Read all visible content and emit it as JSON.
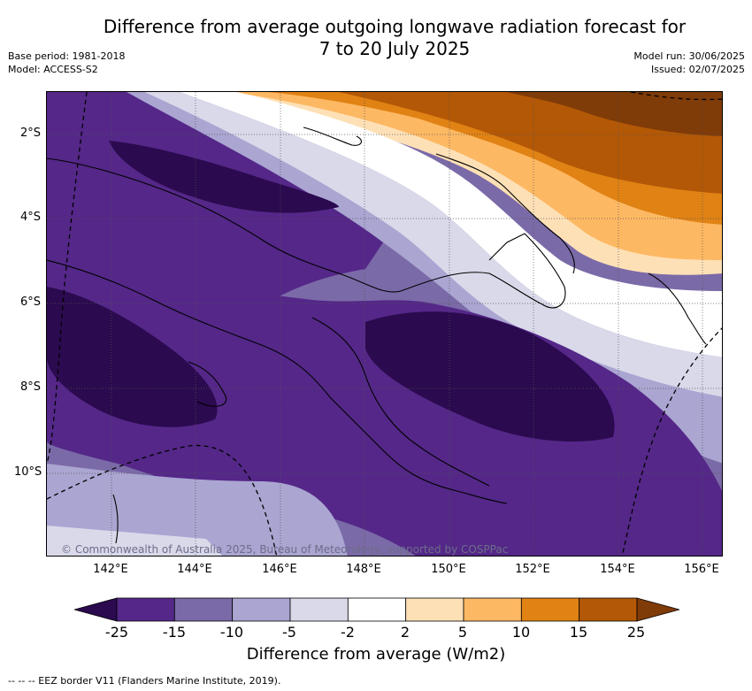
{
  "title_line1": "Difference from average outgoing longwave radiation forecast for",
  "title_line2": "7 to 20 July 2025",
  "meta": {
    "base_period": "Base period: 1981-2018",
    "model": "Model: ACCESS-S2",
    "model_run": "Model run: 30/06/2025",
    "issued": "Issued: 02/07/2025"
  },
  "copyright": "© Commonwealth of Australia 2025, Bureau of Meteorology, supported by COSPPac",
  "x_ticks": [
    "142°E",
    "144°E",
    "146°E",
    "148°E",
    "150°E",
    "152°E",
    "154°E",
    "156°E"
  ],
  "y_ticks": [
    "2°S",
    "4°S",
    "6°S",
    "8°S",
    "10°S"
  ],
  "colorbar": {
    "title": "Difference from average (W/m2)",
    "labels": [
      "-25",
      "-15",
      "-10",
      "-5",
      "-2",
      "2",
      "5",
      "10",
      "15",
      "25"
    ],
    "colors": [
      "#2b0a4f",
      "#542788",
      "#7b6aa8",
      "#aaa5d1",
      "#d9d9ea",
      "#ffffff",
      "#fee0b6",
      "#fdb863",
      "#e08214",
      "#b35806",
      "#7f3b08"
    ]
  },
  "footnote": "-- -- -- EEZ border V11 (Flanders Marine Institute, 2019)."
}
